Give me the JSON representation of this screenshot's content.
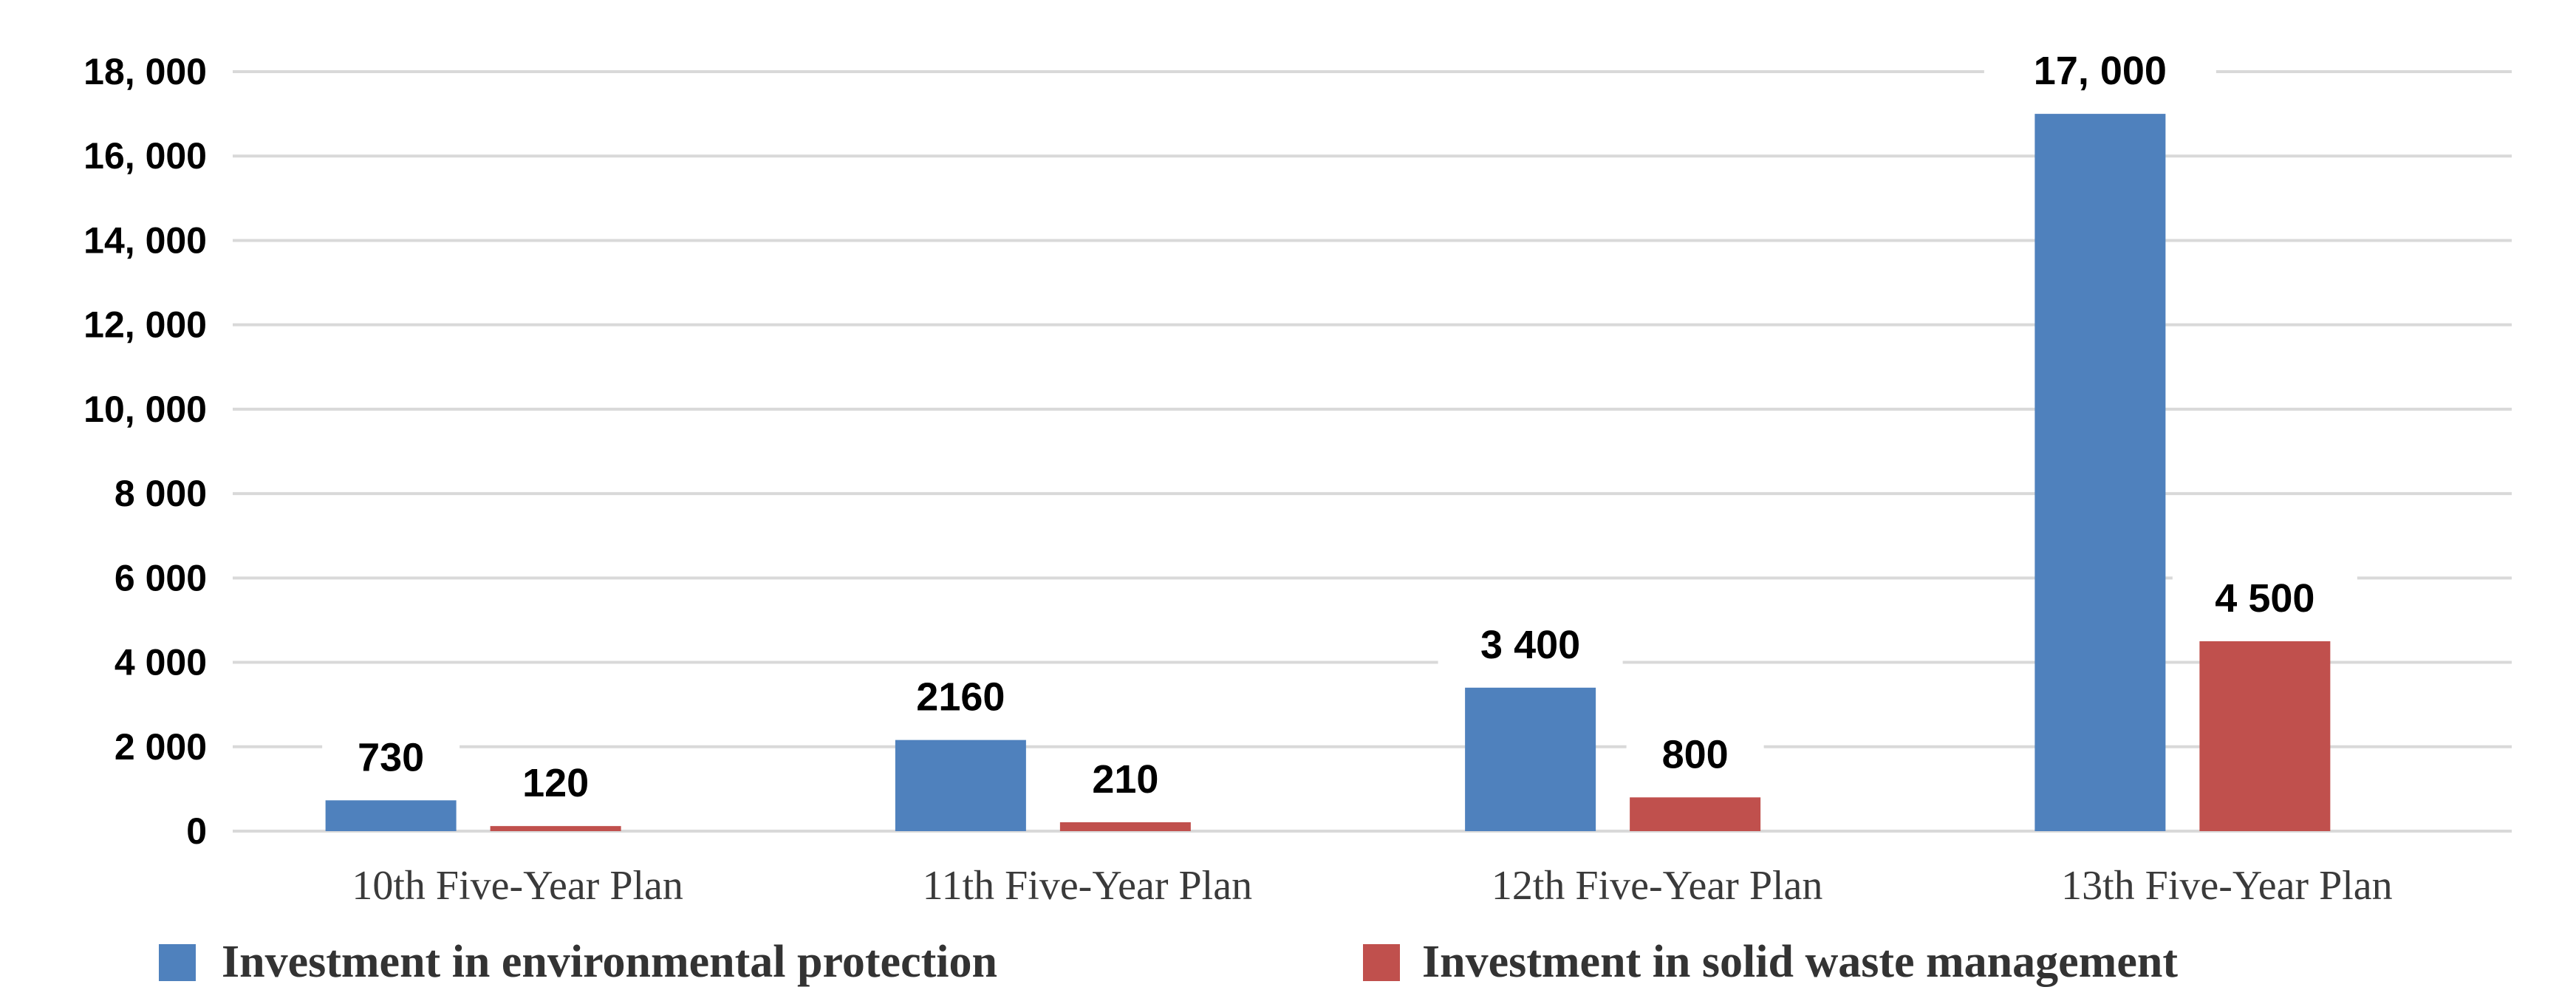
{
  "chart_data": {
    "type": "bar",
    "categories": [
      "10th Five-Year Plan",
      "11th Five-Year Plan",
      "12th Five-Year Plan",
      "13th Five-Year Plan"
    ],
    "series": [
      {
        "name": "Investment in environmental protection",
        "values": [
          730,
          2160,
          3400,
          17000
        ],
        "labels": [
          "730",
          "2160",
          "3 400",
          "17, 000"
        ],
        "color": "#4f81bd"
      },
      {
        "name": "Investment in solid waste management",
        "values": [
          120,
          210,
          800,
          4500
        ],
        "labels": [
          "120",
          "210",
          "800",
          "4 500"
        ],
        "color": "#c0504d"
      }
    ],
    "yticks": [
      0,
      2000,
      4000,
      6000,
      8000,
      10000,
      12000,
      14000,
      16000,
      18000
    ],
    "ytick_labels": [
      "0",
      "2 000",
      "4 000",
      "6 000",
      "8 000",
      "10, 000",
      "12, 000",
      "14, 000",
      "16, 000",
      "18, 000"
    ],
    "ylim": [
      0,
      18000
    ],
    "title": "",
    "xlabel": "",
    "ylabel": "",
    "grid": true,
    "legend": "bottom"
  }
}
